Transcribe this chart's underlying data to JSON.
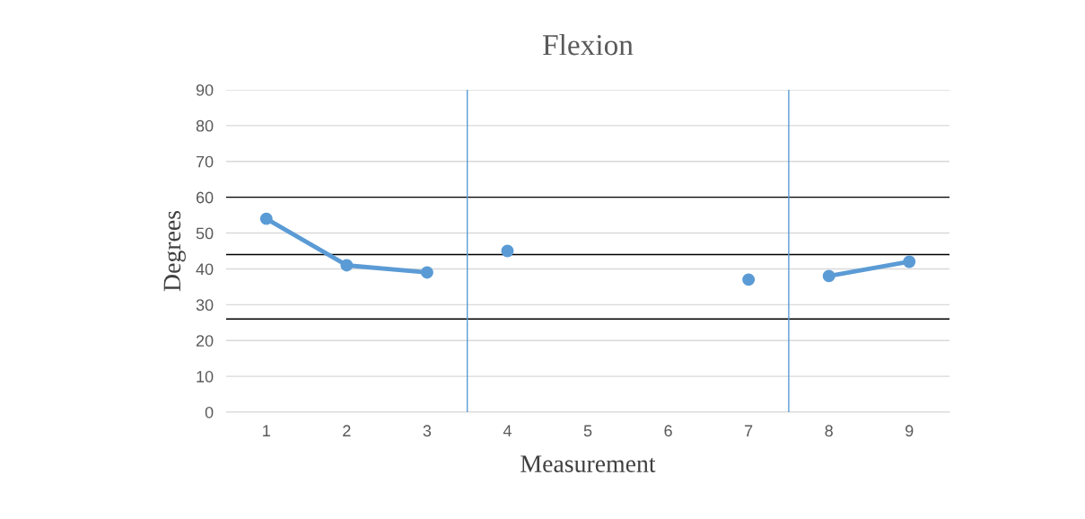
{
  "chart_data": {
    "type": "line",
    "title": "Flexion",
    "xlabel": "Measurement",
    "ylabel": "Degrees",
    "series": [
      {
        "color": "#5b9bd5",
        "x": [
          1,
          2,
          3
        ],
        "values": [
          54,
          41,
          39
        ]
      },
      {
        "color": "#5b9bd5",
        "x": [
          4,
          5,
          6,
          7
        ],
        "values": [
          45,
          null,
          null,
          37
        ]
      },
      {
        "color": "#5b9bd5",
        "x": [
          8,
          9
        ],
        "values": [
          38,
          42
        ]
      }
    ],
    "xlim": [
      0.5,
      9.5
    ],
    "xticks": [
      1,
      2,
      3,
      4,
      5,
      6,
      7,
      8,
      9
    ],
    "ylim": [
      0,
      90
    ],
    "yticks": [
      0,
      10,
      20,
      30,
      40,
      50,
      60,
      70,
      80,
      90
    ],
    "grid": "y",
    "marker": "circle",
    "line_style": "solid",
    "ref_lines": [
      {
        "axis": "y",
        "value": 60,
        "color": "#000000"
      },
      {
        "axis": "y",
        "value": 44,
        "color": "#000000"
      },
      {
        "axis": "y",
        "value": 26,
        "color": "#000000"
      },
      {
        "axis": "x",
        "value": 3.5,
        "color": "#5b9bd5"
      },
      {
        "axis": "x",
        "value": 7.5,
        "color": "#5b9bd5"
      }
    ]
  }
}
